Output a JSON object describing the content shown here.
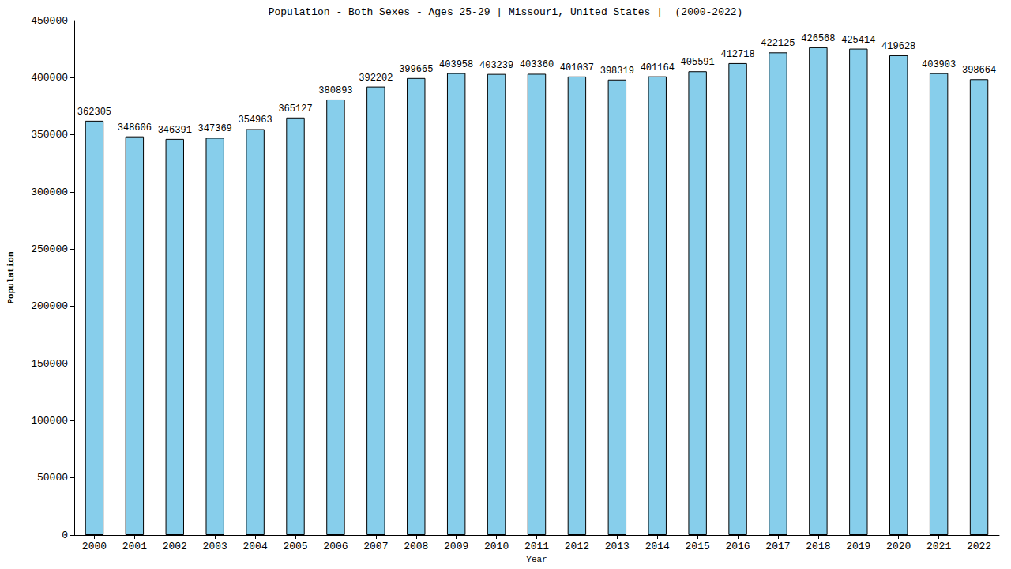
{
  "chart_data": {
    "type": "bar",
    "title": "Population - Both Sexes - Ages 25-29 | Missouri, United States |  (2000-2022)",
    "x_label": "Year",
    "y_label": "Population",
    "categories": [
      "2000",
      "2001",
      "2002",
      "2003",
      "2004",
      "2005",
      "2006",
      "2007",
      "2008",
      "2009",
      "2010",
      "2011",
      "2012",
      "2013",
      "2014",
      "2015",
      "2016",
      "2017",
      "2018",
      "2019",
      "2020",
      "2021",
      "2022"
    ],
    "values": [
      362305,
      348606,
      346391,
      347369,
      354963,
      365127,
      380893,
      392202,
      399665,
      403958,
      403239,
      403360,
      401037,
      398319,
      401164,
      405591,
      412718,
      422125,
      426568,
      425414,
      419628,
      403903,
      398664
    ],
    "color": "#87ceeb",
    "ylim": [
      0,
      450000
    ],
    "yticks": [
      0,
      50000,
      100000,
      150000,
      200000,
      250000,
      300000,
      350000,
      400000,
      450000
    ],
    "grid": false,
    "data_labels": true
  }
}
